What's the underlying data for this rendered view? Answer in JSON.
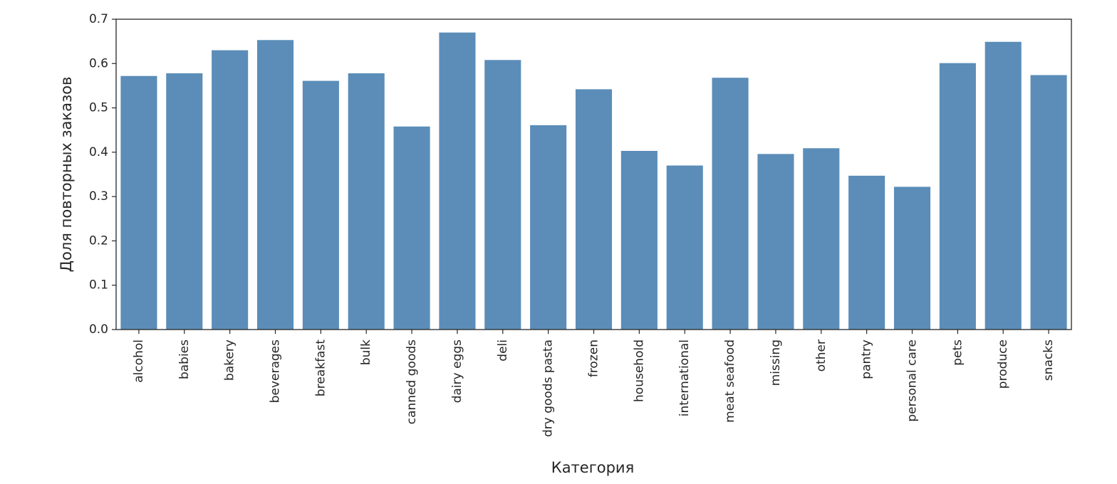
{
  "chart_data": {
    "type": "bar",
    "xlabel": "Категория",
    "ylabel": "Доля повторных заказов",
    "ylim": [
      0,
      0.7
    ],
    "yticks": [
      "0.0",
      "0.1",
      "0.2",
      "0.3",
      "0.4",
      "0.5",
      "0.6",
      "0.7"
    ],
    "grid": false,
    "bar_color": "#5b8db8",
    "categories": [
      "alcohol",
      "babies",
      "bakery",
      "beverages",
      "breakfast",
      "bulk",
      "canned goods",
      "dairy eggs",
      "deli",
      "dry goods pasta",
      "frozen",
      "household",
      "international",
      "meat seafood",
      "missing",
      "other",
      "pantry",
      "personal care",
      "pets",
      "produce",
      "snacks"
    ],
    "values": [
      0.572,
      0.578,
      0.63,
      0.653,
      0.561,
      0.578,
      0.458,
      0.67,
      0.608,
      0.461,
      0.542,
      0.403,
      0.37,
      0.568,
      0.396,
      0.409,
      0.347,
      0.322,
      0.601,
      0.649,
      0.574
    ]
  }
}
